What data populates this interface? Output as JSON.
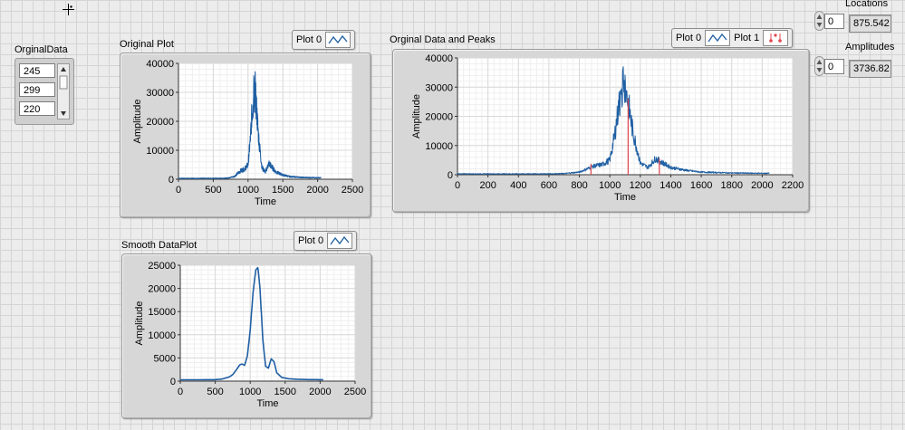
{
  "cursor_icon": "crosshair-cursor-icon",
  "colors": {
    "trace": "#1f5fa3",
    "peaks": "#e0454f"
  },
  "orginal_data": {
    "label": "OrginalData",
    "values": [
      "245",
      "299",
      "220"
    ]
  },
  "original_plot": {
    "title": "Original Plot",
    "legend": [
      {
        "name": "Plot 0",
        "style": "line"
      }
    ]
  },
  "smooth_plot": {
    "title": "Smooth DataPlot",
    "legend": [
      {
        "name": "Plot 0",
        "style": "line"
      }
    ]
  },
  "peaks_plot": {
    "title": "Orginal Data and Peaks",
    "legend": [
      {
        "name": "Plot 0",
        "style": "line"
      },
      {
        "name": "Plot 1",
        "style": "points"
      }
    ]
  },
  "locations": {
    "label": "Locations",
    "index": "0",
    "value": "875.542"
  },
  "amplitudes": {
    "label": "Amplitudes",
    "index": "0",
    "value": "3736.82"
  },
  "chart_data": [
    {
      "id": "original",
      "type": "line",
      "title": "Original Plot",
      "xlabel": "Time",
      "ylabel": "Amplitude",
      "xlim": [
        0,
        2500
      ],
      "ylim": [
        0,
        40000
      ],
      "xticks": [
        0,
        500,
        1000,
        1500,
        2000,
        2500
      ],
      "yticks": [
        0,
        10000,
        20000,
        30000,
        40000
      ],
      "grid": true,
      "series": [
        {
          "noisy": true,
          "x": [
            0,
            300,
            600,
            700,
            800,
            850,
            900,
            950,
            1000,
            1030,
            1060,
            1080,
            1100,
            1120,
            1150,
            1200,
            1250,
            1300,
            1350,
            1400,
            1500,
            1600,
            1800,
            2000,
            2047
          ],
          "values": [
            300,
            300,
            320,
            400,
            900,
            2000,
            3000,
            3500,
            5000,
            13000,
            24000,
            27000,
            30000,
            25000,
            15000,
            4000,
            2500,
            5500,
            4000,
            2500,
            1500,
            900,
            600,
            500,
            500
          ]
        }
      ]
    },
    {
      "id": "peaks",
      "type": "line",
      "title": "Orginal Data and Peaks",
      "xlabel": "Time",
      "ylabel": "Amplitude",
      "xlim": [
        0,
        2200
      ],
      "ylim": [
        0,
        40000
      ],
      "xticks": [
        0,
        200,
        400,
        600,
        800,
        1000,
        1200,
        1400,
        1600,
        1800,
        2000,
        2200
      ],
      "yticks": [
        0,
        10000,
        20000,
        30000,
        40000
      ],
      "grid": true,
      "series": [
        {
          "noisy": true,
          "x": [
            0,
            300,
            600,
            700,
            800,
            850,
            900,
            950,
            1000,
            1030,
            1060,
            1080,
            1100,
            1120,
            1150,
            1200,
            1250,
            1300,
            1350,
            1400,
            1500,
            1600,
            1800,
            2000,
            2047
          ],
          "values": [
            300,
            300,
            320,
            400,
            900,
            2000,
            3000,
            3500,
            5000,
            13000,
            24000,
            27000,
            30000,
            25000,
            15000,
            4000,
            2500,
            5500,
            4000,
            2500,
            1500,
            900,
            600,
            500,
            500
          ]
        },
        {
          "name": "Plot 1",
          "peaks": true,
          "x": [
            876,
            1120,
            1325
          ],
          "values": [
            3737,
            26000,
            5500
          ]
        }
      ]
    },
    {
      "id": "smooth",
      "type": "line",
      "title": "Smooth DataPlot",
      "xlabel": "Time",
      "ylabel": "Amplitude",
      "xlim": [
        0,
        2500
      ],
      "ylim": [
        0,
        25000
      ],
      "xticks": [
        0,
        500,
        1000,
        1500,
        2000,
        2500
      ],
      "yticks": [
        0,
        5000,
        10000,
        15000,
        20000,
        25000
      ],
      "grid": true,
      "series": [
        {
          "noisy": false,
          "x": [
            0,
            300,
            500,
            600,
            700,
            750,
            800,
            850,
            880,
            920,
            960,
            1000,
            1040,
            1080,
            1110,
            1140,
            1180,
            1220,
            1260,
            1300,
            1340,
            1380,
            1450,
            1550,
            1700,
            1850,
            2000,
            2047
          ],
          "values": [
            300,
            300,
            320,
            450,
            900,
            1400,
            2400,
            3500,
            3700,
            3400,
            5500,
            11000,
            19000,
            24000,
            24500,
            20000,
            9000,
            3200,
            2800,
            4800,
            4200,
            1800,
            800,
            500,
            380,
            330,
            320,
            320
          ]
        }
      ]
    }
  ]
}
